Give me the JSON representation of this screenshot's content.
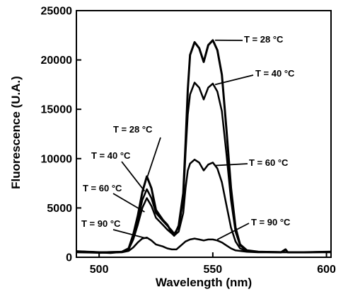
{
  "chart_data": {
    "type": "line",
    "xlabel": "Wavelength (nm)",
    "ylabel": "Fluorescence (U.A.)",
    "xlim": [
      490,
      602
    ],
    "ylim": [
      0,
      25000
    ],
    "x_ticks": [
      500,
      550,
      600
    ],
    "y_ticks": [
      0,
      5000,
      10000,
      15000,
      20000,
      25000
    ],
    "grid": false,
    "legend": "none",
    "line_color": "#000000",
    "series": [
      {
        "name": "T = 28 °C",
        "points": [
          [
            490,
            600
          ],
          [
            500,
            500
          ],
          [
            505,
            450
          ],
          [
            510,
            550
          ],
          [
            513,
            900
          ],
          [
            515,
            2300
          ],
          [
            517,
            4200
          ],
          [
            519,
            6600
          ],
          [
            521,
            8200
          ],
          [
            523,
            7000
          ],
          [
            525,
            4800
          ],
          [
            528,
            3800
          ],
          [
            530,
            3300
          ],
          [
            532,
            2500
          ],
          [
            533,
            2200
          ],
          [
            535,
            3200
          ],
          [
            537,
            6500
          ],
          [
            538,
            11500
          ],
          [
            539,
            17000
          ],
          [
            540,
            20500
          ],
          [
            542,
            21800
          ],
          [
            544,
            21200
          ],
          [
            546,
            19800
          ],
          [
            548,
            21500
          ],
          [
            550,
            22000
          ],
          [
            552,
            21000
          ],
          [
            554,
            18500
          ],
          [
            556,
            13000
          ],
          [
            558,
            7000
          ],
          [
            560,
            3000
          ],
          [
            562,
            1300
          ],
          [
            565,
            700
          ],
          [
            570,
            550
          ],
          [
            580,
            500
          ],
          [
            582,
            800
          ],
          [
            583,
            500
          ],
          [
            590,
            500
          ],
          [
            602,
            550
          ]
        ]
      },
      {
        "name": "T = 40 °C",
        "points": [
          [
            490,
            600
          ],
          [
            500,
            500
          ],
          [
            510,
            550
          ],
          [
            513,
            850
          ],
          [
            515,
            2100
          ],
          [
            517,
            3800
          ],
          [
            519,
            5800
          ],
          [
            521,
            6900
          ],
          [
            523,
            6000
          ],
          [
            525,
            4500
          ],
          [
            528,
            3700
          ],
          [
            530,
            3200
          ],
          [
            532,
            2700
          ],
          [
            533,
            2400
          ],
          [
            535,
            3000
          ],
          [
            537,
            5800
          ],
          [
            538,
            10500
          ],
          [
            539,
            14500
          ],
          [
            540,
            16500
          ],
          [
            542,
            17700
          ],
          [
            544,
            17200
          ],
          [
            546,
            16000
          ],
          [
            548,
            17200
          ],
          [
            550,
            17600
          ],
          [
            552,
            16800
          ],
          [
            554,
            14800
          ],
          [
            556,
            10500
          ],
          [
            558,
            5800
          ],
          [
            560,
            2600
          ],
          [
            562,
            1200
          ],
          [
            565,
            650
          ],
          [
            570,
            550
          ],
          [
            590,
            500
          ],
          [
            602,
            550
          ]
        ]
      },
      {
        "name": "T = 60 °C",
        "points": [
          [
            490,
            600
          ],
          [
            500,
            500
          ],
          [
            510,
            550
          ],
          [
            513,
            800
          ],
          [
            515,
            1800
          ],
          [
            517,
            3300
          ],
          [
            519,
            5000
          ],
          [
            521,
            6000
          ],
          [
            523,
            5200
          ],
          [
            525,
            4000
          ],
          [
            528,
            3300
          ],
          [
            530,
            2800
          ],
          [
            532,
            2400
          ],
          [
            533,
            2200
          ],
          [
            535,
            2600
          ],
          [
            537,
            4500
          ],
          [
            538,
            7000
          ],
          [
            539,
            8800
          ],
          [
            540,
            9500
          ],
          [
            542,
            9900
          ],
          [
            544,
            9600
          ],
          [
            546,
            8800
          ],
          [
            548,
            9400
          ],
          [
            550,
            9600
          ],
          [
            552,
            9000
          ],
          [
            554,
            7600
          ],
          [
            556,
            5300
          ],
          [
            558,
            3000
          ],
          [
            560,
            1600
          ],
          [
            562,
            900
          ],
          [
            565,
            600
          ],
          [
            570,
            550
          ],
          [
            590,
            500
          ],
          [
            602,
            550
          ]
        ]
      },
      {
        "name": "T = 90 °C",
        "points": [
          [
            490,
            500
          ],
          [
            500,
            450
          ],
          [
            510,
            500
          ],
          [
            513,
            650
          ],
          [
            515,
            1000
          ],
          [
            517,
            1500
          ],
          [
            519,
            1900
          ],
          [
            521,
            2000
          ],
          [
            523,
            1700
          ],
          [
            525,
            1300
          ],
          [
            528,
            1100
          ],
          [
            530,
            900
          ],
          [
            532,
            800
          ],
          [
            534,
            800
          ],
          [
            536,
            1200
          ],
          [
            538,
            1600
          ],
          [
            540,
            1800
          ],
          [
            542,
            1900
          ],
          [
            544,
            1800
          ],
          [
            546,
            1700
          ],
          [
            548,
            1800
          ],
          [
            550,
            1800
          ],
          [
            552,
            1700
          ],
          [
            554,
            1500
          ],
          [
            556,
            1200
          ],
          [
            558,
            900
          ],
          [
            560,
            700
          ],
          [
            565,
            550
          ],
          [
            570,
            500
          ],
          [
            590,
            500
          ],
          [
            602,
            500
          ]
        ]
      }
    ],
    "annotations": [
      {
        "text": "T = 28 °C",
        "target": [
          551,
          22000
        ],
        "series": 0
      },
      {
        "text": "T = 40 °C",
        "target": [
          551,
          17500
        ],
        "series": 1
      },
      {
        "text": "T = 60 °C",
        "target": [
          551,
          9300
        ],
        "series": 2
      },
      {
        "text": "T = 90 °C",
        "target": [
          552,
          1800
        ],
        "series": 3
      },
      {
        "text": "T = 28 °C",
        "target": [
          521,
          8000
        ],
        "series": 0
      },
      {
        "text": "T = 40 °C",
        "target": [
          520,
          6700
        ],
        "series": 1
      },
      {
        "text": "T = 60 °C",
        "target": [
          520,
          4600
        ],
        "series": 2
      },
      {
        "text": "T = 90 °C",
        "target": [
          521,
          1900
        ],
        "series": 3
      }
    ]
  }
}
